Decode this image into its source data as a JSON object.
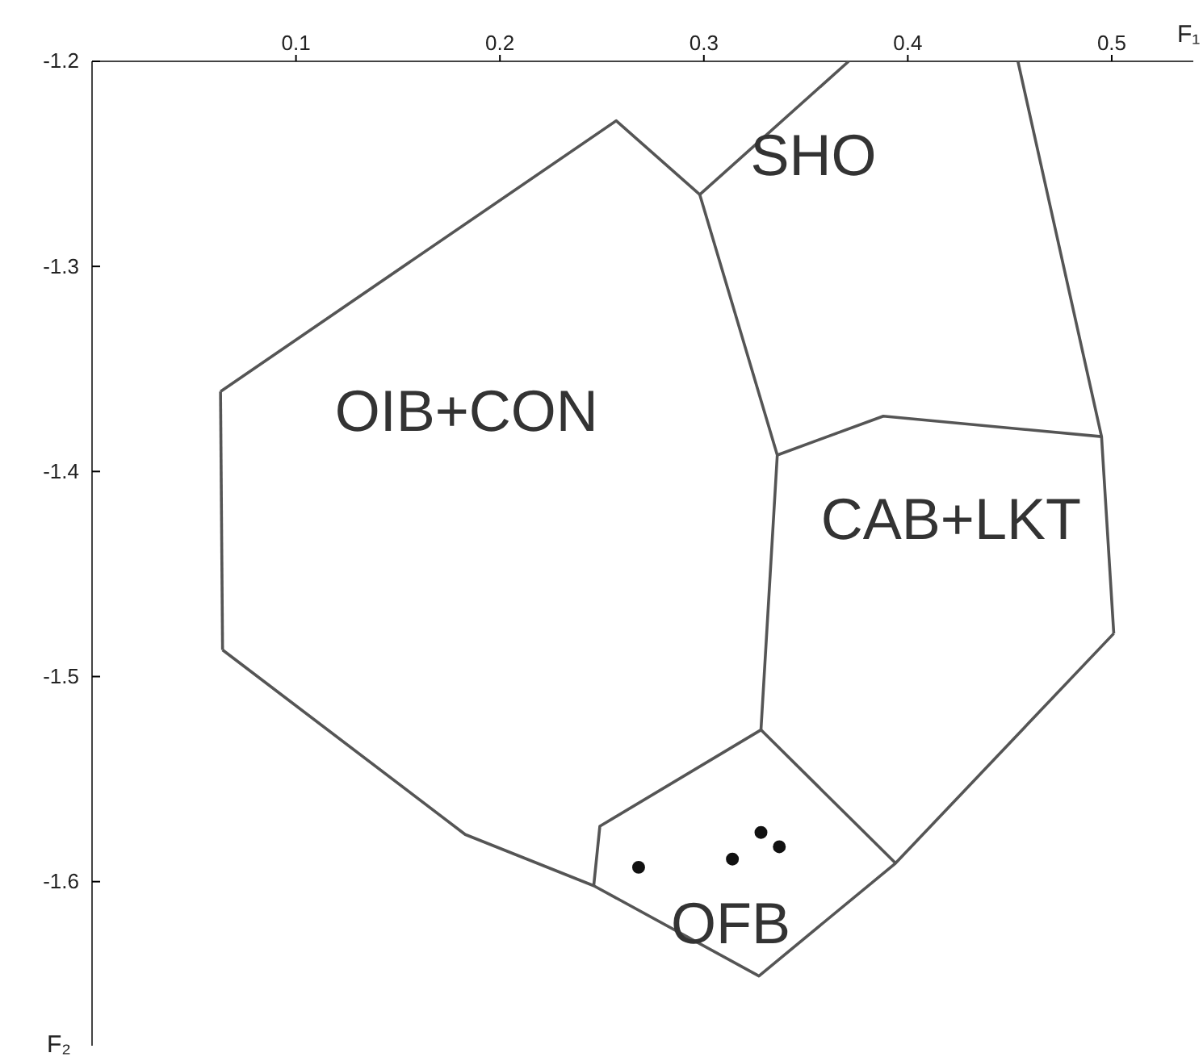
{
  "chart_data": {
    "type": "scatter",
    "xlabel": "F₁",
    "ylabel": "F₂",
    "xlim": [
      0,
      0.54
    ],
    "ylim": [
      -1.68,
      -1.2
    ],
    "xticks": [
      0.1,
      0.2,
      0.3,
      0.4,
      0.5
    ],
    "yticks": [
      -1.2,
      -1.3,
      -1.4,
      -1.5,
      -1.6
    ],
    "grid": false,
    "series": [
      {
        "type": "line",
        "color": "#555555",
        "line_style": "solid",
        "x": [
          0.064,
          0.183,
          0.246,
          0.327,
          0.394,
          0.501
        ],
        "values": [
          -1.487,
          -1.577,
          -1.602,
          -1.646,
          -1.591,
          -1.479
        ]
      },
      {
        "type": "line",
        "color": "#555555",
        "line_style": "solid",
        "x": [
          0.063,
          0.257,
          0.298,
          0.371
        ],
        "values": [
          -1.361,
          -1.229,
          -1.265,
          -1.2
        ]
      },
      {
        "type": "line",
        "color": "#555555",
        "line_style": "solid",
        "x": [
          0.454,
          0.495,
          0.501
        ],
        "values": [
          -1.2,
          -1.383,
          -1.479
        ]
      },
      {
        "type": "line",
        "color": "#555555",
        "line_style": "solid",
        "x": [
          0.063,
          0.064
        ],
        "values": [
          -1.361,
          -1.487
        ]
      },
      {
        "type": "line",
        "color": "#555555",
        "line_style": "solid",
        "x": [
          0.246,
          0.249,
          0.328,
          0.336,
          0.298
        ],
        "values": [
          -1.602,
          -1.573,
          -1.526,
          -1.392,
          -1.265
        ]
      },
      {
        "type": "line",
        "color": "#555555",
        "line_style": "solid",
        "x": [
          0.336,
          0.388,
          0.495
        ],
        "values": [
          -1.392,
          -1.373,
          -1.383
        ]
      },
      {
        "type": "line",
        "color": "#555555",
        "line_style": "solid",
        "x": [
          0.328,
          0.394
        ],
        "values": [
          -1.526,
          -1.591
        ]
      },
      {
        "color": "#111111",
        "marker": "circle",
        "x": [
          0.268,
          0.314,
          0.328,
          0.337
        ],
        "values": [
          -1.593,
          -1.589,
          -1.576,
          -1.583
        ]
      }
    ],
    "annotations": [
      "SHO",
      "OIB+CON",
      "CAB+LKT",
      "OFB"
    ]
  }
}
